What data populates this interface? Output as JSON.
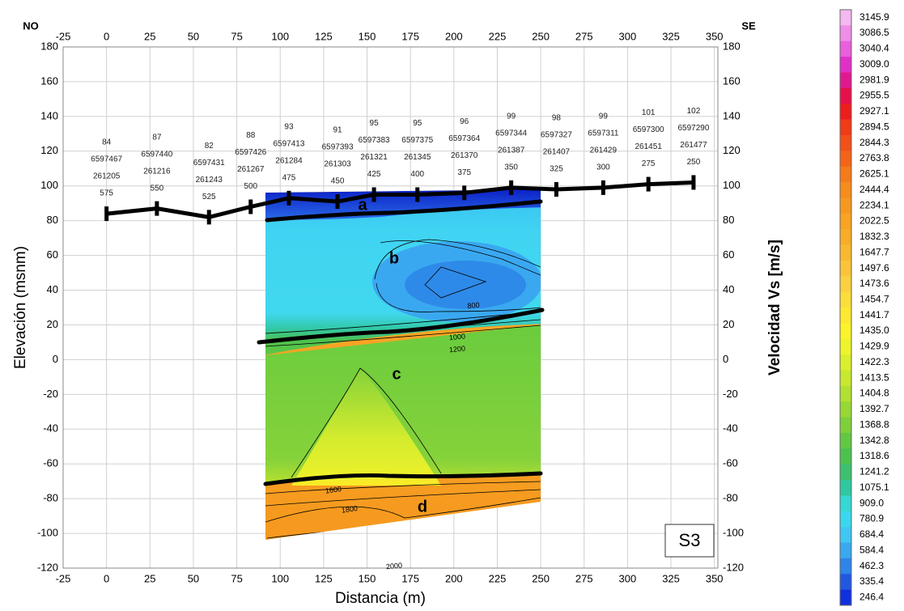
{
  "chart_data": {
    "type": "section",
    "corner_labels": {
      "left": "NO",
      "right": "SE"
    },
    "panel_label": "S3",
    "xlabel": "Distancia (m)",
    "ylabel": "Elevación (msnm)",
    "xlim": [
      -25,
      352
    ],
    "xticks": [
      -25,
      0,
      25,
      50,
      75,
      100,
      125,
      150,
      175,
      200,
      225,
      250,
      275,
      300,
      325,
      350
    ],
    "ylim": [
      -120,
      180
    ],
    "yticks": [
      -120,
      -100,
      -80,
      -60,
      -40,
      -20,
      0,
      20,
      40,
      60,
      80,
      100,
      120,
      140,
      160,
      180
    ],
    "grid": true,
    "stations": {
      "x": [
        0,
        29,
        59,
        83,
        105,
        133,
        154,
        179,
        206,
        233,
        259,
        286,
        312,
        338
      ],
      "elevation": [
        84,
        87,
        82,
        88,
        93,
        91,
        95,
        95,
        96,
        99,
        98,
        99,
        101,
        102
      ],
      "north": [
        6597467,
        6597440,
        6597431,
        6597426,
        6597413,
        6597393,
        6597383,
        6597375,
        6597364,
        6597344,
        6597327,
        6597311,
        6597300,
        6597290
      ],
      "east": [
        261205,
        261216,
        261243,
        261267,
        261284,
        261303,
        261321,
        261345,
        261370,
        261387,
        261407,
        261429,
        261451,
        261477
      ],
      "chainage": [
        575,
        550,
        525,
        500,
        475,
        450,
        425,
        400,
        375,
        350,
        325,
        300,
        275,
        250
      ],
      "color": "#000000"
    },
    "layers": [
      "a",
      "b",
      "c",
      "d"
    ],
    "contour_labels": [
      800,
      1000,
      1200,
      1600,
      1800,
      2000
    ],
    "colorbar": {
      "label": "Velocidad Vs [m/s]",
      "ticks": [
        3145.9,
        3086.5,
        3040.4,
        {
          "value": 3009,
          "label": "3009.0"
        },
        2981.9,
        2955.5,
        2927.1,
        2894.5,
        2844.3,
        2763.8,
        2625.1,
        2444.4,
        2234.1,
        2022.5,
        1832.3,
        1647.7,
        1497.6,
        1473.6,
        1454.7,
        1441.7,
        {
          "value": 1435,
          "label": "1435.0"
        },
        1429.9,
        1422.3,
        1413.5,
        1404.8,
        1392.7,
        1368.8,
        1342.8,
        1318.6,
        1241.2,
        1075.1,
        {
          "value": 909,
          "label": "909.0"
        },
        780.9,
        684.4,
        584.4,
        462.3,
        335.4,
        246.4
      ],
      "colors": [
        "#f5b8f0",
        "#ef8de8",
        "#e95fdc",
        "#e030c8",
        "#e01890",
        "#e8104a",
        "#ee1c1c",
        "#f03a18",
        "#f25018",
        "#f46418",
        "#f57a1a",
        "#f68c1c",
        "#f7981e",
        "#f8a322",
        "#f8ad28",
        "#f9b830",
        "#fac43a",
        "#fbd040",
        "#fcde3a",
        "#fdea30",
        "#fbf428",
        "#eef42a",
        "#dcef2c",
        "#c8e82e",
        "#b2e030",
        "#98d834",
        "#7ed03a",
        "#62c842",
        "#4cc24e",
        "#3cc070",
        "#30c8a0",
        "#34d8d4",
        "#3ad8ee",
        "#40c6f4",
        "#3aa8f0",
        "#2e84e8",
        "#2058e0",
        "#1030e0"
      ]
    }
  }
}
